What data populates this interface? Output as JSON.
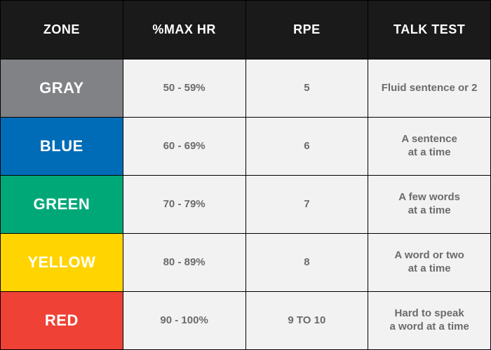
{
  "table": {
    "type": "table",
    "columns": [
      "ZONE",
      "%MAX HR",
      "RPE",
      "TALK TEST"
    ],
    "header_bg": "#1a1a1a",
    "header_text_color": "#ffffff",
    "header_fontsize": 18,
    "data_bg": "#f2f2f2",
    "data_text_color": "#6b6b6b",
    "data_fontsize": 15,
    "zone_label_fontsize": 22,
    "zone_label_text_color": "#ffffff",
    "border_color": "#000000",
    "rows": [
      {
        "zone": "GRAY",
        "zone_bg": "#808285",
        "max_hr": "50 - 59%",
        "rpe": "5",
        "talk": "Fluid sentence or 2"
      },
      {
        "zone": "BLUE",
        "zone_bg": "#006bb6",
        "max_hr": "60 - 69%",
        "rpe": "6",
        "talk": "A sentence\nat a time"
      },
      {
        "zone": "GREEN",
        "zone_bg": "#00a878",
        "max_hr": "70 - 79%",
        "rpe": "7",
        "talk": "A few words\nat a time"
      },
      {
        "zone": "YELLOW",
        "zone_bg": "#ffd400",
        "max_hr": "80 - 89%",
        "rpe": "8",
        "talk": "A word or two\nat a time"
      },
      {
        "zone": "RED",
        "zone_bg": "#ef4136",
        "max_hr": "90 - 100%",
        "rpe": "9 TO 10",
        "talk": "Hard to speak\na word at a time"
      }
    ]
  }
}
